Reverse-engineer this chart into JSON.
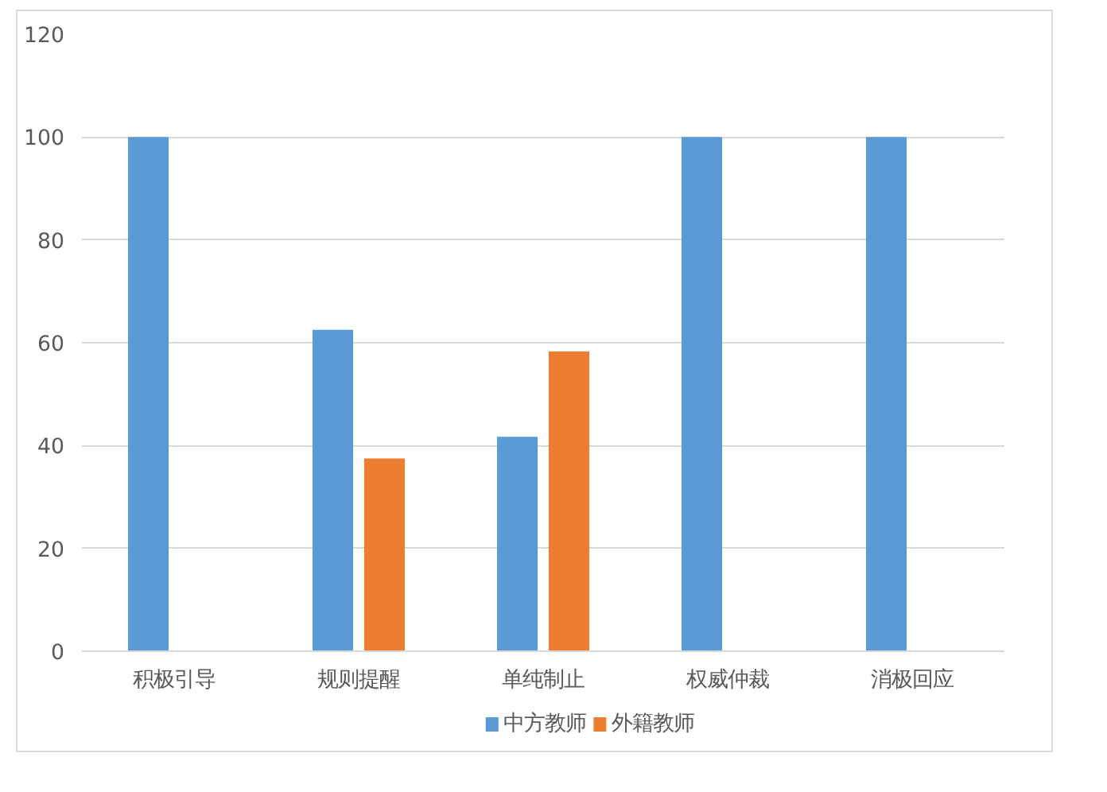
{
  "chart_data": {
    "type": "bar",
    "categories": [
      "积极引导",
      "规则提醒",
      "单纯制止",
      "权威仲裁",
      "消极回应"
    ],
    "series": [
      {
        "name": "中方教师",
        "color": "#5b9bd5",
        "values": [
          100,
          62.5,
          41.7,
          100,
          100
        ]
      },
      {
        "name": "外籍教师",
        "color": "#ed7d31",
        "values": [
          null,
          37.5,
          58.3,
          null,
          null
        ]
      }
    ],
    "ylim": [
      0,
      120
    ],
    "yticks": [
      0,
      20,
      40,
      60,
      80,
      100,
      120
    ],
    "grid": "y",
    "legend": "bottom"
  }
}
